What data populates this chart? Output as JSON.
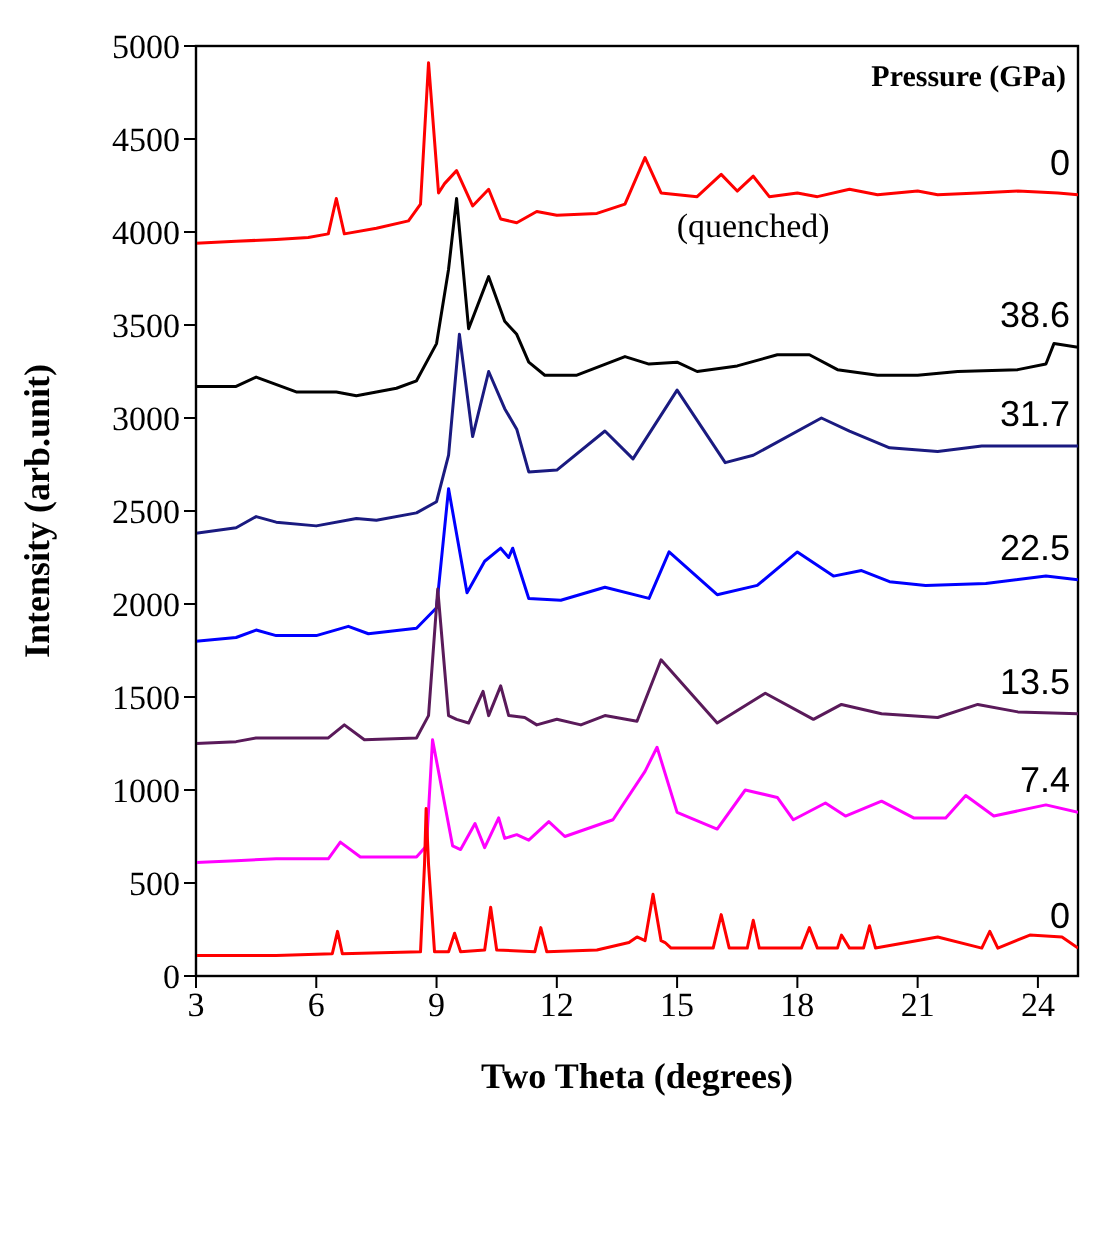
{
  "chart_data": {
    "type": "line",
    "xlabel": "Two Theta (degrees)",
    "ylabel": "Intensity (arb.unit)",
    "legend_title": "Pressure (GPa)",
    "annotations": [
      "(quenched)"
    ],
    "xlim": [
      3,
      25
    ],
    "xticks": [
      3,
      6,
      9,
      12,
      15,
      18,
      21,
      24
    ],
    "ylim": [
      0,
      5000
    ],
    "yticks": [
      0,
      500,
      1000,
      1500,
      2000,
      2500,
      3000,
      3500,
      4000,
      4500,
      5000
    ],
    "marker": "none",
    "line_style": "solid",
    "series": [
      {
        "name": "0",
        "color": "#ff0000",
        "x": [
          3,
          4,
          5,
          5.8,
          6.3,
          6.5,
          6.7,
          7.5,
          8.3,
          8.6,
          8.8,
          9.05,
          9.2,
          9.5,
          9.9,
          10.3,
          10.6,
          11,
          11.5,
          12,
          13,
          13.7,
          14.2,
          14.6,
          15.5,
          16.1,
          16.5,
          16.9,
          17.3,
          18,
          18.5,
          19.3,
          20,
          21,
          21.5,
          22.5,
          23.5,
          24.5,
          25
        ],
        "values": [
          3940,
          3950,
          3960,
          3970,
          3990,
          4180,
          3990,
          4020,
          4060,
          4150,
          4910,
          4210,
          4260,
          4330,
          4140,
          4230,
          4070,
          4050,
          4110,
          4090,
          4100,
          4150,
          4400,
          4210,
          4190,
          4310,
          4220,
          4300,
          4190,
          4210,
          4190,
          4230,
          4200,
          4220,
          4200,
          4210,
          4220,
          4210,
          4200
        ]
      },
      {
        "name": "38.6",
        "color": "#000000",
        "x": [
          3,
          4,
          4.5,
          5.5,
          6.5,
          7,
          8,
          8.5,
          9,
          9.3,
          9.5,
          9.8,
          10.3,
          10.7,
          11,
          11.3,
          11.7,
          12.5,
          13.7,
          14.3,
          15,
          15.5,
          16.5,
          17.5,
          18.3,
          19,
          20,
          21,
          22,
          23.5,
          24.2,
          24.4,
          25
        ],
        "values": [
          3170,
          3170,
          3220,
          3140,
          3140,
          3120,
          3160,
          3200,
          3400,
          3800,
          4180,
          3480,
          3760,
          3520,
          3450,
          3300,
          3230,
          3230,
          3330,
          3290,
          3300,
          3250,
          3280,
          3340,
          3340,
          3260,
          3230,
          3230,
          3250,
          3260,
          3290,
          3400,
          3380
        ]
      },
      {
        "name": "31.7",
        "color": "#1a1a80",
        "x": [
          3,
          4,
          4.5,
          5,
          6,
          7,
          7.5,
          8.5,
          9,
          9.3,
          9.57,
          9.9,
          10.3,
          10.7,
          11,
          11.3,
          12,
          13.2,
          13.9,
          15,
          16.2,
          16.9,
          18.6,
          19.3,
          20.3,
          21.5,
          22.6,
          25
        ],
        "values": [
          2380,
          2410,
          2470,
          2440,
          2420,
          2460,
          2450,
          2490,
          2550,
          2800,
          3450,
          2900,
          3250,
          3050,
          2940,
          2710,
          2720,
          2930,
          2780,
          3150,
          2760,
          2800,
          3000,
          2930,
          2840,
          2820,
          2850,
          2850
        ]
      },
      {
        "name": "22.5",
        "color": "#0000ff",
        "x": [
          3,
          4,
          4.5,
          5,
          6,
          6.8,
          7.3,
          8.5,
          9,
          9.3,
          9.76,
          10.2,
          10.6,
          10.8,
          10.9,
          11.3,
          12.1,
          13.2,
          14.3,
          14.8,
          16,
          17,
          18,
          18.9,
          19.6,
          20.3,
          21.2,
          22.7,
          24.2,
          25
        ],
        "values": [
          1800,
          1820,
          1860,
          1830,
          1830,
          1880,
          1840,
          1870,
          1980,
          2620,
          2060,
          2230,
          2300,
          2250,
          2300,
          2030,
          2020,
          2090,
          2030,
          2280,
          2050,
          2100,
          2280,
          2150,
          2180,
          2120,
          2100,
          2110,
          2150,
          2130
        ]
      },
      {
        "name": "13.5",
        "color": "#5a1a5a",
        "x": [
          3,
          4,
          4.5,
          6.3,
          6.7,
          7.2,
          8.5,
          8.8,
          9.03,
          9.3,
          9.5,
          9.8,
          10.16,
          10.3,
          10.6,
          10.8,
          11.2,
          11.5,
          12,
          12.6,
          13.2,
          14,
          14.6,
          16,
          17.2,
          18.4,
          19.1,
          20.1,
          21.5,
          22.5,
          23.5,
          25
        ],
        "values": [
          1250,
          1260,
          1280,
          1280,
          1350,
          1270,
          1280,
          1400,
          2080,
          1400,
          1380,
          1360,
          1530,
          1400,
          1560,
          1400,
          1390,
          1350,
          1380,
          1350,
          1400,
          1370,
          1700,
          1360,
          1520,
          1380,
          1460,
          1410,
          1390,
          1460,
          1420,
          1410
        ]
      },
      {
        "name": "7.4",
        "color": "#ff00ff",
        "x": [
          3,
          4,
          5,
          6.3,
          6.6,
          7.1,
          8.5,
          8.75,
          8.9,
          9.4,
          9.6,
          9.96,
          10.2,
          10.55,
          10.7,
          11,
          11.3,
          11.8,
          12.2,
          13.4,
          14.2,
          14.5,
          15,
          16,
          16.7,
          17.5,
          17.9,
          18.7,
          19.2,
          20.1,
          20.9,
          21.7,
          22.2,
          22.9,
          24.2,
          25
        ],
        "values": [
          610,
          620,
          630,
          630,
          720,
          640,
          640,
          700,
          1270,
          700,
          680,
          820,
          690,
          850,
          740,
          760,
          730,
          830,
          750,
          840,
          1100,
          1230,
          880,
          790,
          1000,
          960,
          840,
          930,
          860,
          940,
          850,
          850,
          970,
          860,
          920,
          880
        ]
      },
      {
        "name": "0",
        "color": "#ff0000",
        "x": [
          3,
          5,
          6.4,
          6.53,
          6.65,
          8.6,
          8.7,
          8.74,
          8.8,
          8.95,
          9.3,
          9.45,
          9.6,
          10.2,
          10.35,
          10.5,
          11.45,
          11.6,
          11.75,
          13,
          13.8,
          14,
          14.2,
          14.4,
          14.6,
          14.7,
          14.85,
          15.9,
          16.1,
          16.3,
          16.75,
          16.9,
          17.05,
          18.1,
          18.3,
          18.5,
          19,
          19.1,
          19.3,
          19.65,
          19.8,
          19.95,
          21.5,
          22.6,
          22.8,
          23,
          23.8,
          24.6,
          25
        ],
        "values": [
          110,
          110,
          120,
          240,
          120,
          130,
          600,
          900,
          600,
          130,
          130,
          230,
          130,
          140,
          370,
          140,
          130,
          260,
          130,
          140,
          180,
          210,
          190,
          440,
          190,
          180,
          150,
          150,
          330,
          150,
          150,
          300,
          150,
          150,
          260,
          150,
          150,
          220,
          150,
          150,
          270,
          150,
          210,
          150,
          240,
          150,
          220,
          210,
          150
        ]
      }
    ]
  }
}
